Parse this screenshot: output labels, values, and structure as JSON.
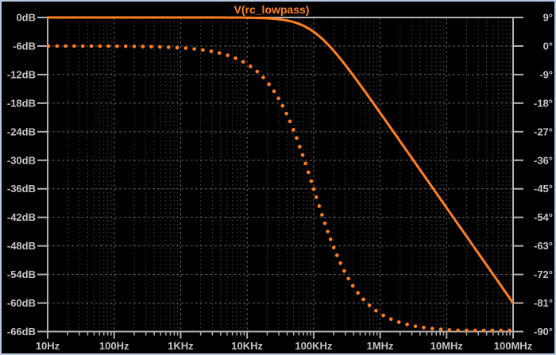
{
  "window": {
    "background": "#000000",
    "border_color": "#b7c9e2"
  },
  "chart_data": {
    "type": "line",
    "title": "V(rc_lowpass)",
    "subtitle": "",
    "legend_position": "top-center",
    "grid": true,
    "x_axis": {
      "scale": "log",
      "unit": "Hz",
      "min": 10,
      "max": 100000000,
      "decades": 7,
      "tick_labels": [
        "10Hz",
        "100Hz",
        "1KHz",
        "10KHz",
        "100KHz",
        "1MHz",
        "10MHz",
        "100MHz"
      ]
    },
    "y_axis_left": {
      "unit": "dB",
      "max": 0,
      "min": -66,
      "step": -6,
      "tick_labels": [
        "0dB",
        "-6dB",
        "-12dB",
        "-18dB",
        "-24dB",
        "-30dB",
        "-36dB",
        "-42dB",
        "-48dB",
        "-54dB",
        "-60dB",
        "-66dB"
      ]
    },
    "y_axis_right": {
      "unit": "degrees",
      "max": 9,
      "min": -90,
      "step": -9,
      "tick_labels": [
        "9°",
        "0°",
        "-9°",
        "-18°",
        "-27°",
        "-36°",
        "-45°",
        "-54°",
        "-63°",
        "-72°",
        "-81°",
        "-90°"
      ]
    },
    "series": [
      {
        "name": "magnitude",
        "axis": "left",
        "line_style": "solid",
        "color": "#ff8020",
        "filter_type": "first-order RC low-pass",
        "cutoff_hz": 100000,
        "rolloff_db_per_decade": -20,
        "points": [
          {
            "f_hz": 10,
            "db": 0.0
          },
          {
            "f_hz": 100,
            "db": 0.0
          },
          {
            "f_hz": 1000,
            "db": 0.0
          },
          {
            "f_hz": 10000,
            "db": -0.04
          },
          {
            "f_hz": 30000,
            "db": -0.37
          },
          {
            "f_hz": 100000,
            "db": -3.01
          },
          {
            "f_hz": 300000,
            "db": -10.0
          },
          {
            "f_hz": 1000000,
            "db": -20.04
          },
          {
            "f_hz": 10000000,
            "db": -40.0
          },
          {
            "f_hz": 100000000,
            "db": -60.0
          }
        ]
      },
      {
        "name": "phase",
        "axis": "right",
        "line_style": "dotted",
        "color": "#ff8020",
        "cutoff_hz": 100000,
        "points": [
          {
            "f_hz": 10,
            "deg": 0.0
          },
          {
            "f_hz": 100,
            "deg": -0.06
          },
          {
            "f_hz": 1000,
            "deg": -0.57
          },
          {
            "f_hz": 10000,
            "deg": -5.71
          },
          {
            "f_hz": 30000,
            "deg": -16.7
          },
          {
            "f_hz": 100000,
            "deg": -45.0
          },
          {
            "f_hz": 300000,
            "deg": -71.57
          },
          {
            "f_hz": 1000000,
            "deg": -84.29
          },
          {
            "f_hz": 10000000,
            "deg": -89.43
          },
          {
            "f_hz": 100000000,
            "deg": -89.94
          }
        ]
      }
    ],
    "colors": {
      "trace": "#ff8020",
      "frame": "#b2b2b2",
      "grid_major": "#5f5f5f",
      "grid_minor": "#454545",
      "label": "#c6c6c6",
      "background": "#000000",
      "title": "#ff8420"
    }
  }
}
